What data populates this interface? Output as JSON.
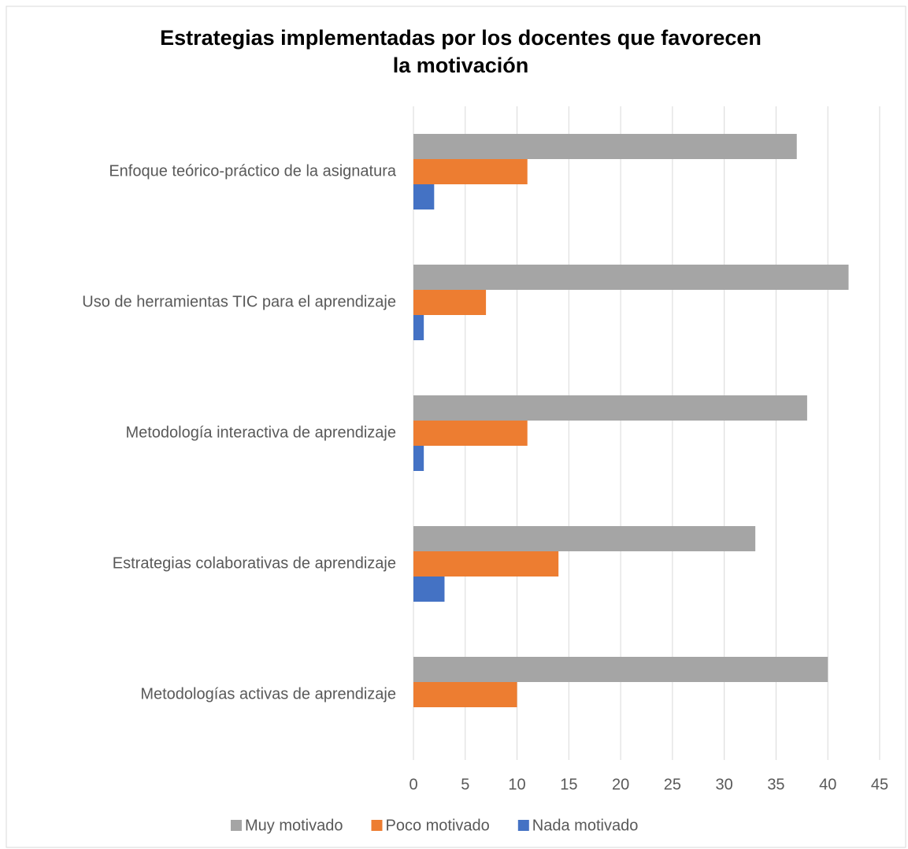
{
  "chart_data": {
    "type": "hbar",
    "title": "Estrategias implementadas por los docentes que favorecen",
    "title_line2": "la motivación",
    "categories": [
      "Enfoque teórico-práctico de la asignatura",
      "Uso de herramientas TIC para el aprendizaje",
      "Metodología interactiva de aprendizaje",
      "Estrategias colaborativas de aprendizaje",
      "Metodologías activas de aprendizaje"
    ],
    "series": [
      {
        "name": "Muy motivado",
        "color": "#a5a5a5",
        "values": [
          37,
          42,
          38,
          33,
          40
        ]
      },
      {
        "name": "Poco motivado",
        "color": "#ed7d31",
        "values": [
          11,
          7,
          11,
          14,
          10
        ]
      },
      {
        "name": "Nada motivado",
        "color": "#4472c4",
        "values": [
          2,
          1,
          1,
          3,
          0
        ]
      }
    ],
    "xlim": [
      0,
      45
    ],
    "xticks": [
      0,
      5,
      10,
      15,
      20,
      25,
      30,
      35,
      40,
      45
    ],
    "grid": true,
    "legend": "bottom"
  }
}
